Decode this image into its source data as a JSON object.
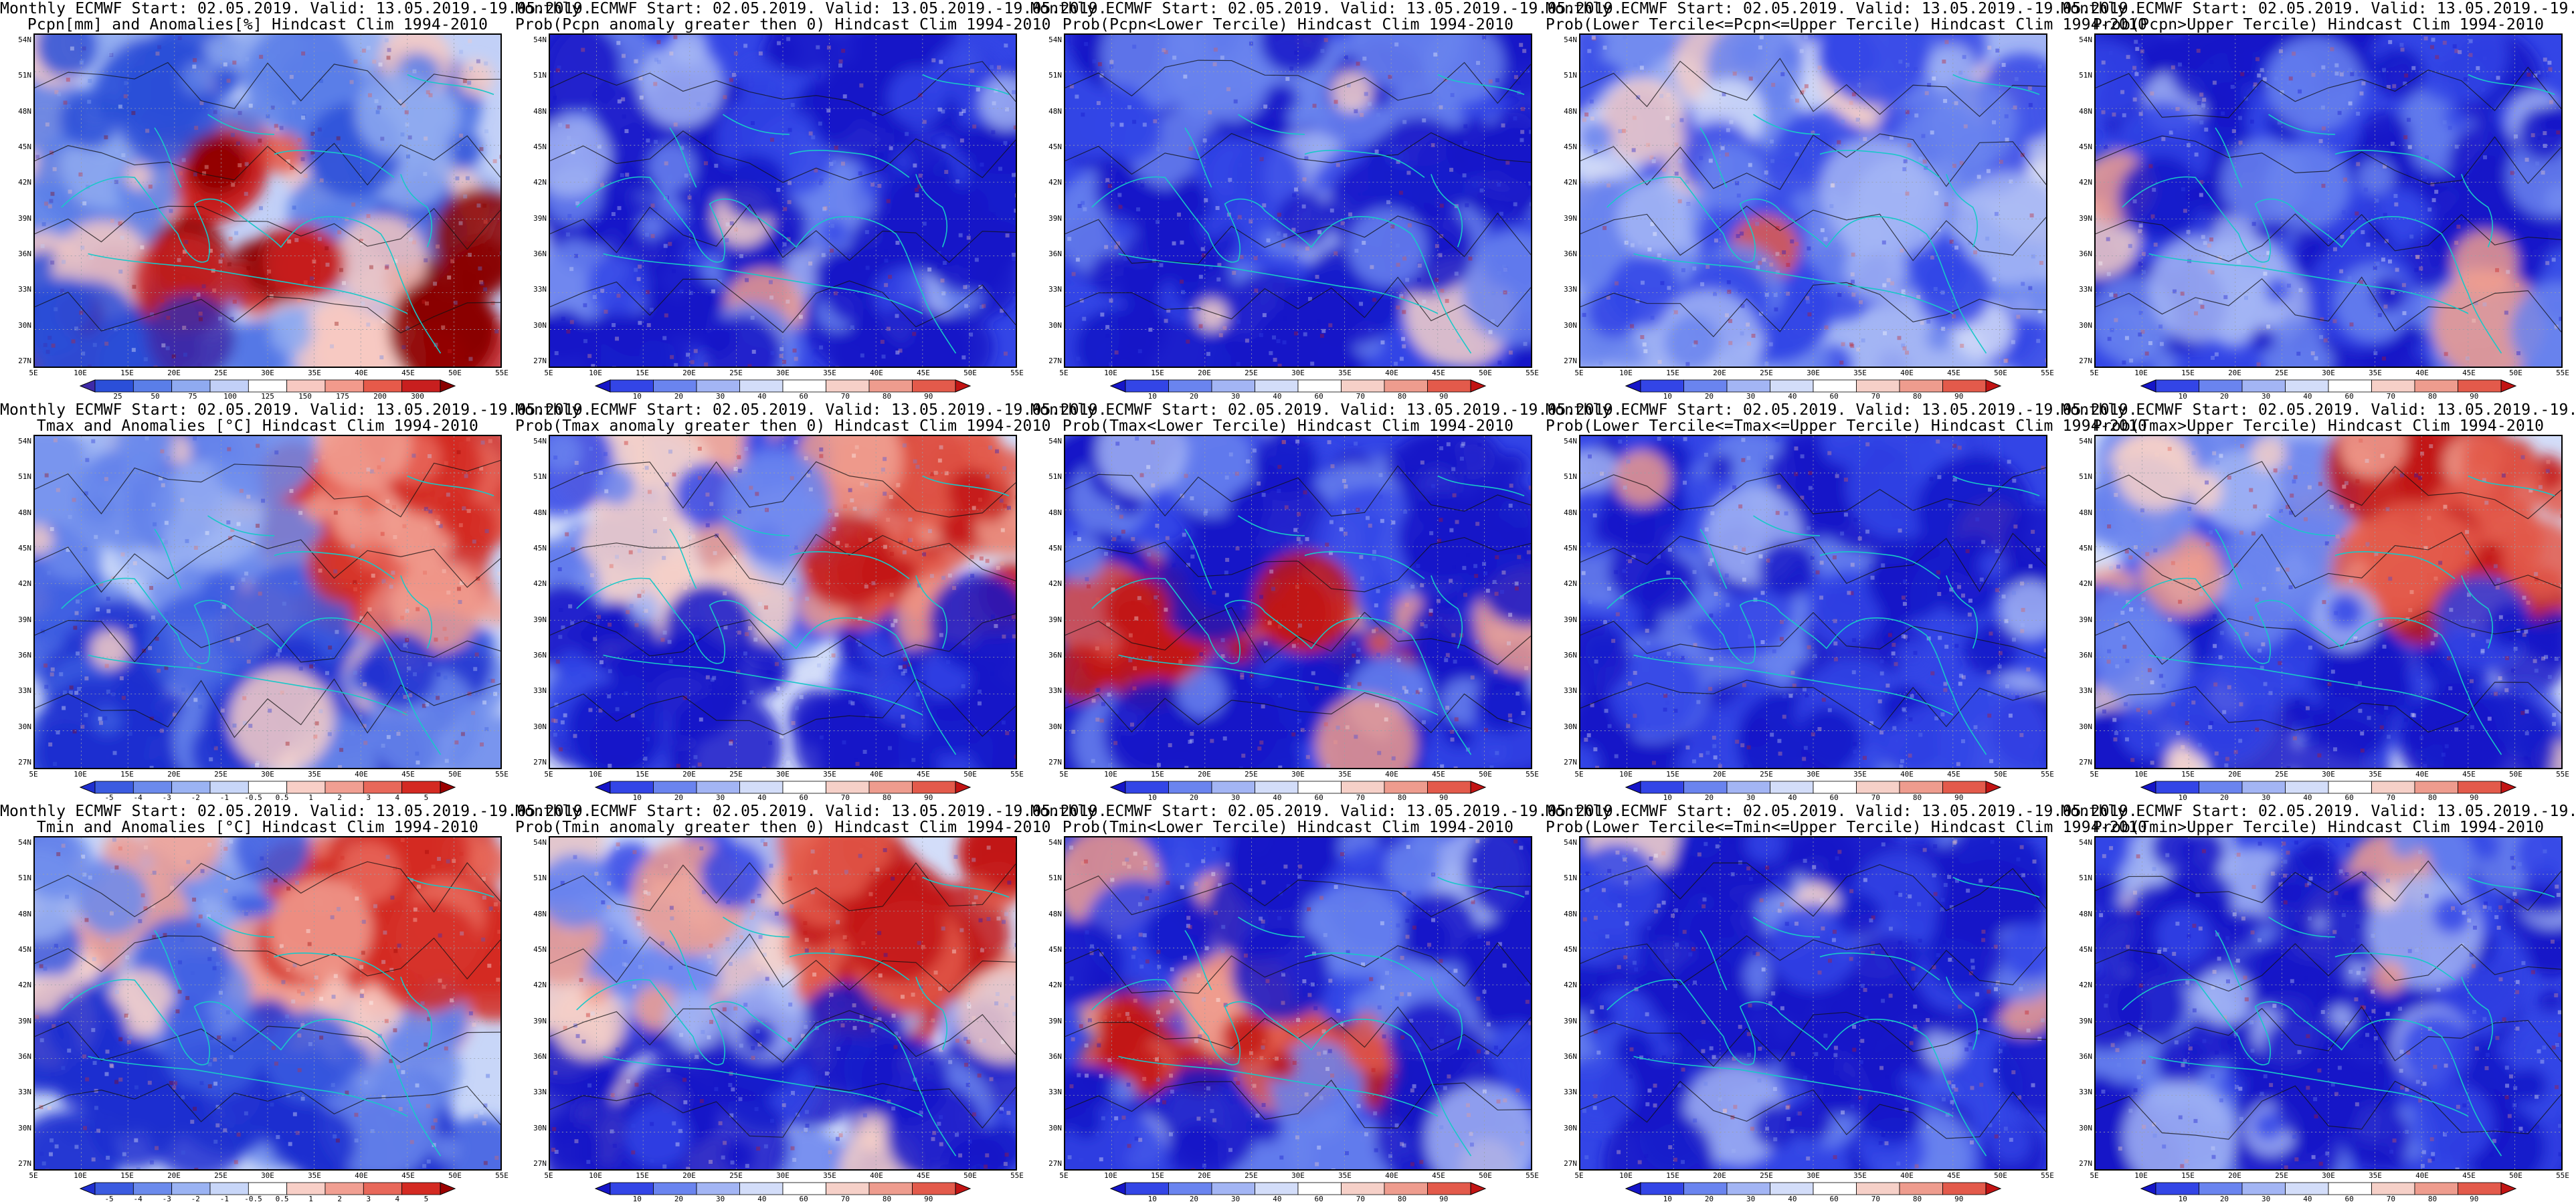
{
  "map_axes": {
    "lat_labels": [
      "54N",
      "51N",
      "48N",
      "45N",
      "42N",
      "39N",
      "36N",
      "33N",
      "30N",
      "27N"
    ],
    "lon_labels": [
      "5E",
      "10E",
      "15E",
      "20E",
      "25E",
      "30E",
      "35E",
      "40E",
      "45E",
      "50E",
      "55E"
    ]
  },
  "palettes": {
    "anom_pcp": [
      "#3e2aa8",
      "#2b4fd8",
      "#5a7ee8",
      "#8faaf0",
      "#c2d0f7",
      "#ffffff",
      "#f7c9c2",
      "#f29a8c",
      "#e65a4a",
      "#c81f1f",
      "#8a0000"
    ],
    "anom_temp": [
      "#1f2fd0",
      "#3b5be0",
      "#6b8aec",
      "#9bb3f3",
      "#c8d6f8",
      "#ffffff",
      "#f8cfc7",
      "#f19f92",
      "#e8685a",
      "#d42a22",
      "#9c0000"
    ],
    "prob": [
      "#1515c8",
      "#3345e6",
      "#6a84ef",
      "#a3b5f4",
      "#d3ddf9",
      "#ffffff",
      "#f6d0c8",
      "#ee9c8e",
      "#e35a4b",
      "#c21414"
    ]
  },
  "rows": [
    {
      "panels": [
        {
          "title1": "Monthly ECMWF Start: 02.05.2019. Valid: 13.05.2019.-19.05.2019.",
          "title2": "Pcpn[mm] and Anomalies[%] Hindcast Clim 1994-2010",
          "palette": "anom_pcp",
          "cbar_labels": [
            "25",
            "50",
            "75",
            "100",
            "125",
            "150",
            "175",
            "200",
            "300"
          ],
          "tone": "mixed"
        },
        {
          "title1": "Monthly ECMWF Start: 02.05.2019. Valid: 13.05.2019.-19.05.2019.",
          "title2": "Prob(Pcpn anomaly greater then 0) Hindcast Clim 1994-2010",
          "palette": "prob",
          "cbar_labels": [
            "10",
            "20",
            "30",
            "40",
            "60",
            "70",
            "80",
            "90"
          ],
          "tone": "blue"
        },
        {
          "title1": "Monthly ECMWF Start: 02.05.2019. Valid: 13.05.2019.-19.05.2019.",
          "title2": "Prob(Pcpn<Lower Tercile) Hindcast Clim 1994-2010",
          "palette": "prob",
          "cbar_labels": [
            "10",
            "20",
            "30",
            "40",
            "60",
            "70",
            "80",
            "90"
          ],
          "tone": "blue"
        },
        {
          "title1": "Monthly ECMWF Start: 02.05.2019. Valid: 13.05.2019.-19.05.2019.",
          "title2": "Prob(Lower Tercile<=Pcpn<=Upper Tercile) Hindcast Clim 1994-2010",
          "palette": "prob",
          "cbar_labels": [
            "10",
            "20",
            "30",
            "40",
            "60",
            "70",
            "80",
            "90"
          ],
          "tone": "light"
        },
        {
          "title1": "Monthly ECMWF Start: 02.05.2019. Valid: 13.05.2019.-19.05.2019.",
          "title2": "Prob(Pcpn>Upper Tercile) Hindcast Clim 1994-2010",
          "palette": "prob",
          "cbar_labels": [
            "10",
            "20",
            "30",
            "40",
            "60",
            "70",
            "80",
            "90"
          ],
          "tone": "blue"
        }
      ]
    },
    {
      "panels": [
        {
          "title1": "Monthly ECMWF Start: 02.05.2019. Valid: 13.05.2019.-19.05.2019.",
          "title2": "Tmax and Anomalies [°C] Hindcast Clim 1994-2010",
          "palette": "anom_temp",
          "cbar_labels": [
            "-5",
            "-4",
            "-3",
            "-2",
            "-1",
            "-0.5",
            "0.5",
            "1",
            "2",
            "3",
            "4",
            "5"
          ],
          "tone": "warm"
        },
        {
          "title1": "Monthly ECMWF Start: 02.05.2019. Valid: 13.05.2019.-19.05.2019.",
          "title2": "Prob(Tmax anomaly greater then 0) Hindcast Clim 1994-2010",
          "palette": "prob",
          "cbar_labels": [
            "10",
            "20",
            "30",
            "40",
            "60",
            "70",
            "80",
            "90"
          ],
          "tone": "warm"
        },
        {
          "title1": "Monthly ECMWF Start: 02.05.2019. Valid: 13.05.2019.-19.05.2019.",
          "title2": "Prob(Tmax<Lower Tercile) Hindcast Clim 1994-2010",
          "palette": "prob",
          "cbar_labels": [
            "10",
            "20",
            "30",
            "40",
            "60",
            "70",
            "80",
            "90"
          ],
          "tone": "bluesouthred"
        },
        {
          "title1": "Monthly ECMWF Start: 02.05.2019. Valid: 13.05.2019.-19.05.2019.",
          "title2": "Prob(Lower Tercile<=Tmax<=Upper Tercile) Hindcast Clim 1994-2010",
          "palette": "prob",
          "cbar_labels": [
            "10",
            "20",
            "30",
            "40",
            "60",
            "70",
            "80",
            "90"
          ],
          "tone": "blue"
        },
        {
          "title1": "Monthly ECMWF Start: 02.05.2019. Valid: 13.05.2019.-19.05.2019.",
          "title2": "Prob(Tmax>Upper Tercile) Hindcast Clim 1994-2010",
          "palette": "prob",
          "cbar_labels": [
            "10",
            "20",
            "30",
            "40",
            "60",
            "70",
            "80",
            "90"
          ],
          "tone": "warm"
        }
      ]
    },
    {
      "panels": [
        {
          "title1": "Monthly ECMWF Start: 02.05.2019. Valid: 13.05.2019.-19.05.2019.",
          "title2": "Tmin and Anomalies [°C] Hindcast Clim 1994-2010",
          "palette": "anom_temp",
          "cbar_labels": [
            "-5",
            "-4",
            "-3",
            "-2",
            "-1",
            "-0.5",
            "0.5",
            "1",
            "2",
            "3",
            "4",
            "5"
          ],
          "tone": "warm"
        },
        {
          "title1": "Monthly ECMWF Start: 02.05.2019. Valid: 13.05.2019.-19.05.2019.",
          "title2": "Prob(Tmin anomaly greater then 0) Hindcast Clim 1994-2010",
          "palette": "prob",
          "cbar_labels": [
            "10",
            "20",
            "30",
            "40",
            "60",
            "70",
            "80",
            "90"
          ],
          "tone": "warm"
        },
        {
          "title1": "Monthly ECMWF Start: 02.05.2019. Valid: 13.05.2019.-19.05.2019.",
          "title2": "Prob(Tmin<Lower Tercile) Hindcast Clim 1994-2010",
          "palette": "prob",
          "cbar_labels": [
            "10",
            "20",
            "30",
            "40",
            "60",
            "70",
            "80",
            "90"
          ],
          "tone": "bluesouthred"
        },
        {
          "title1": "Monthly ECMWF Start: 02.05.2019. Valid: 13.05.2019.-19.05.2019.",
          "title2": "Prob(Lower Tercile<=Tmin<=Upper Tercile) Hindcast Clim 1994-2010",
          "palette": "prob",
          "cbar_labels": [
            "10",
            "20",
            "30",
            "40",
            "60",
            "70",
            "80",
            "90"
          ],
          "tone": "blue"
        },
        {
          "title1": "Monthly ECMWF Start: 02.05.2019. Valid: 13.05.2019.-19.05.2019.",
          "title2": "Prob(Tmin>Upper Tercile) Hindcast Clim 1994-2010",
          "palette": "prob",
          "cbar_labels": [
            "10",
            "20",
            "30",
            "40",
            "60",
            "70",
            "80",
            "90"
          ],
          "tone": "blue"
        }
      ]
    }
  ]
}
